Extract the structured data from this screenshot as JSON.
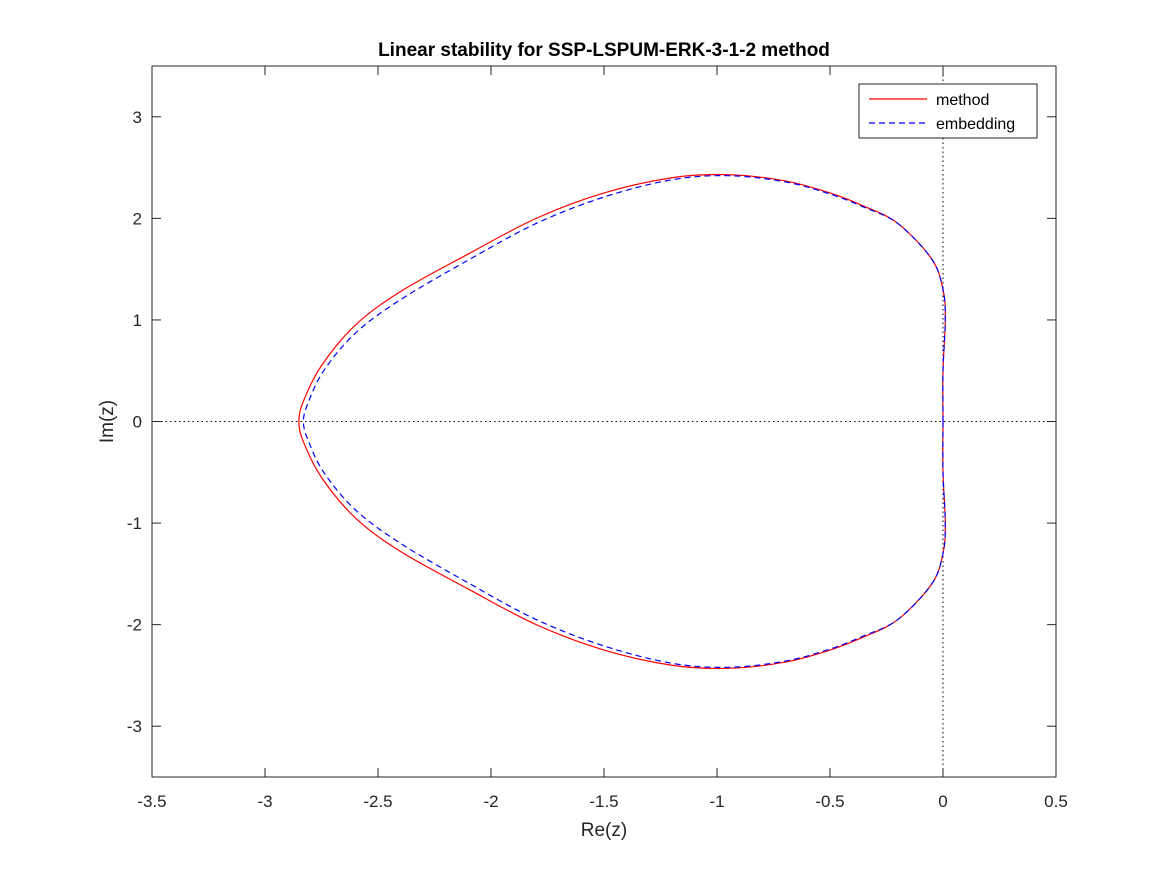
{
  "chart_data": {
    "type": "line",
    "title": "Linear stability for SSP-LSPUM-ERK-3-1-2 method",
    "xlabel": "Re(z)",
    "ylabel": "Im(z)",
    "xlim": [
      -3.5,
      0.5
    ],
    "ylim": [
      -3.5,
      3.5
    ],
    "xticks": [
      -3.5,
      -3,
      -2.5,
      -2,
      -1.5,
      -1,
      -0.5,
      0,
      0.5
    ],
    "xtick_labels": [
      "-3.5",
      "-3",
      "-2.5",
      "-2",
      "-1.5",
      "-1",
      "-0.5",
      "0",
      "0.5"
    ],
    "yticks": [
      -3,
      -2,
      -1,
      0,
      1,
      2,
      3
    ],
    "ytick_labels": [
      "-3",
      "-2",
      "-1",
      "0",
      "1",
      "2",
      "3"
    ],
    "grid": false,
    "legend": "top-right",
    "reference_lines": [
      {
        "orientation": "horizontal",
        "value": 0,
        "style": "dotted",
        "color": "#000000"
      },
      {
        "orientation": "vertical",
        "value": 0,
        "style": "dotted",
        "color": "#000000"
      }
    ],
    "series": [
      {
        "name": "method",
        "color": "#ff0000",
        "style": "solid",
        "points": [
          [
            0.0,
            0.0
          ],
          [
            0.0,
            0.5
          ],
          [
            0.01,
            1.0
          ],
          [
            0.0,
            1.3
          ],
          [
            -0.05,
            1.6
          ],
          [
            -0.2,
            1.95
          ],
          [
            -0.35,
            2.12
          ],
          [
            -0.5,
            2.25
          ],
          [
            -0.7,
            2.37
          ],
          [
            -0.95,
            2.43
          ],
          [
            -1.2,
            2.4
          ],
          [
            -1.5,
            2.25
          ],
          [
            -1.8,
            2.0
          ],
          [
            -2.1,
            1.65
          ],
          [
            -2.4,
            1.28
          ],
          [
            -2.6,
            0.95
          ],
          [
            -2.75,
            0.55
          ],
          [
            -2.83,
            0.2
          ],
          [
            -2.85,
            0.0
          ],
          [
            -2.83,
            -0.2
          ],
          [
            -2.75,
            -0.55
          ],
          [
            -2.6,
            -0.95
          ],
          [
            -2.4,
            -1.28
          ],
          [
            -2.1,
            -1.65
          ],
          [
            -1.8,
            -2.0
          ],
          [
            -1.5,
            -2.25
          ],
          [
            -1.2,
            -2.4
          ],
          [
            -0.95,
            -2.43
          ],
          [
            -0.7,
            -2.37
          ],
          [
            -0.5,
            -2.25
          ],
          [
            -0.35,
            -2.12
          ],
          [
            -0.2,
            -1.95
          ],
          [
            -0.05,
            -1.6
          ],
          [
            0.0,
            -1.3
          ],
          [
            0.01,
            -1.0
          ],
          [
            0.0,
            -0.5
          ],
          [
            0.0,
            0.0
          ]
        ]
      },
      {
        "name": "embedding",
        "color": "#0000ff",
        "style": "dashed",
        "points": [
          [
            0.0,
            0.0
          ],
          [
            0.0,
            0.5
          ],
          [
            0.01,
            1.0
          ],
          [
            0.0,
            1.3
          ],
          [
            -0.05,
            1.6
          ],
          [
            -0.2,
            1.95
          ],
          [
            -0.35,
            2.11
          ],
          [
            -0.5,
            2.24
          ],
          [
            -0.7,
            2.36
          ],
          [
            -0.95,
            2.42
          ],
          [
            -1.2,
            2.38
          ],
          [
            -1.5,
            2.21
          ],
          [
            -1.8,
            1.95
          ],
          [
            -2.1,
            1.59
          ],
          [
            -2.4,
            1.2
          ],
          [
            -2.6,
            0.87
          ],
          [
            -2.74,
            0.5
          ],
          [
            -2.81,
            0.18
          ],
          [
            -2.83,
            0.0
          ],
          [
            -2.81,
            -0.18
          ],
          [
            -2.74,
            -0.5
          ],
          [
            -2.6,
            -0.87
          ],
          [
            -2.4,
            -1.2
          ],
          [
            -2.1,
            -1.59
          ],
          [
            -1.8,
            -1.95
          ],
          [
            -1.5,
            -2.21
          ],
          [
            -1.2,
            -2.38
          ],
          [
            -0.95,
            -2.42
          ],
          [
            -0.7,
            -2.36
          ],
          [
            -0.5,
            -2.24
          ],
          [
            -0.35,
            -2.11
          ],
          [
            -0.2,
            -1.95
          ],
          [
            -0.05,
            -1.6
          ],
          [
            0.0,
            -1.3
          ],
          [
            0.01,
            -1.0
          ],
          [
            0.0,
            -0.5
          ],
          [
            0.0,
            0.0
          ]
        ]
      }
    ]
  }
}
